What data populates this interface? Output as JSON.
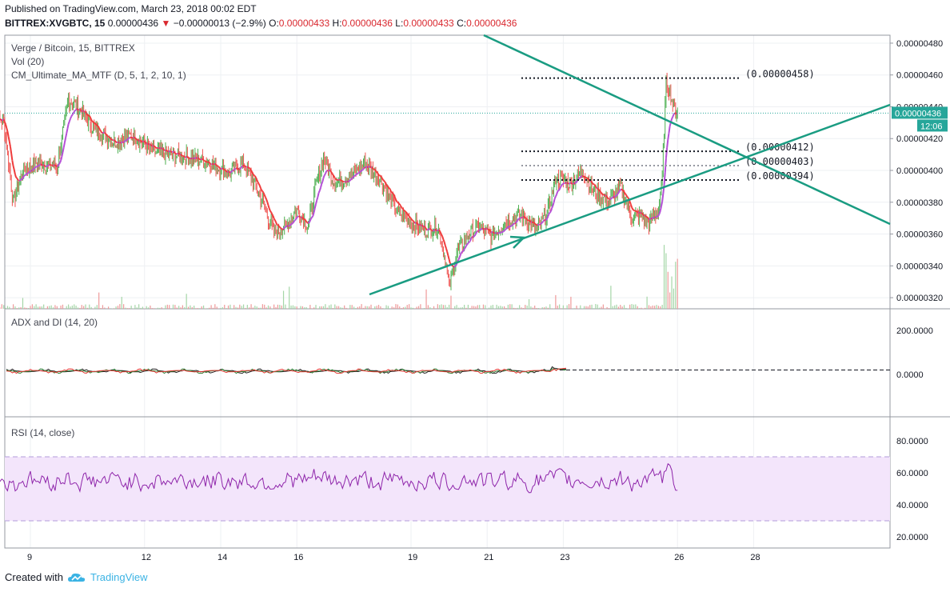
{
  "header": {
    "published": "Published on TradingView.com, March 23, 2018 00:02 EDT",
    "symbol": "BITTREX:XVGBTC, 15",
    "last": "0.00000436",
    "change": "−0.00000013 (−2.9%)",
    "o_label": "O:",
    "o_value": "0.00000433",
    "h_label": "H:",
    "h_value": "0.00000436",
    "l_label": "L:",
    "l_value": "0.00000433",
    "c_label": "C:",
    "c_value": "0.00000436"
  },
  "footer": {
    "created_with": "Created with",
    "brand": "TradingView"
  },
  "colors": {
    "up": "#4caf50",
    "down": "#ef5350",
    "ma_up": "#ef3b3b",
    "ma_flat": "#b44fd6",
    "trendline": "#1a9c82",
    "adx": "#222222",
    "di_plus": "#2e7d32",
    "di_minus": "#e53935",
    "rsi": "#8e24aa",
    "rsi_band": "#f3e5fb",
    "price_tag": "#26a69a"
  },
  "chart_data": [
    {
      "type": "candlestick",
      "legend": [
        "Verge / Bitcoin, 15, BITTREX",
        "Vol (20)",
        "CM_Ultimate_MA_MTF (D, 5, 1, 2, 10, 1)"
      ],
      "x_ticks": [
        "9",
        "12",
        "14",
        "16",
        "19",
        "21",
        "23",
        "26",
        "28"
      ],
      "y_ticks": [
        "0.00000320",
        "0.00000340",
        "0.00000360",
        "0.00000380",
        "0.00000400",
        "0.00000420",
        "0.00000440",
        "0.00000460",
        "0.00000480"
      ],
      "ylim": [
        3.13e-06,
        4.85e-06
      ],
      "current_price": "0.00000436",
      "countdown": "12:06",
      "levels": [
        {
          "label": "(0.00000458)",
          "value": 4.58e-06
        },
        {
          "label": "(0.00000412)",
          "value": 4.12e-06
        },
        {
          "label": "(0.00000403)",
          "value": 4.03e-06
        },
        {
          "label": "(0.00000394)",
          "value": 3.94e-06
        }
      ],
      "close_path": [
        [
          0.0,
          4.33e-06
        ],
        [
          0.3,
          4.31e-06
        ],
        [
          0.55,
          3.8e-06
        ],
        [
          0.8,
          4e-06
        ],
        [
          1.2,
          4.05e-06
        ],
        [
          1.7,
          4.02e-06
        ],
        [
          2.0,
          4.45e-06
        ],
        [
          2.3,
          4.38e-06
        ],
        [
          2.7,
          4.25e-06
        ],
        [
          3.2,
          4.18e-06
        ],
        [
          3.7,
          4.22e-06
        ],
        [
          4.2,
          4.12e-06
        ],
        [
          4.7,
          4.1e-06
        ],
        [
          5.2,
          4.08e-06
        ],
        [
          5.7,
          4.05e-06
        ],
        [
          6.2,
          3.98e-06
        ],
        [
          6.6,
          4.05e-06
        ],
        [
          7.1,
          3.8e-06
        ],
        [
          7.4,
          3.6e-06
        ],
        [
          7.7,
          3.65e-06
        ],
        [
          8.0,
          3.75e-06
        ],
        [
          8.3,
          3.65e-06
        ],
        [
          8.5,
          3.9e-06
        ],
        [
          8.7,
          4.08e-06
        ],
        [
          9.0,
          3.92e-06
        ],
        [
          9.5,
          3.98e-06
        ],
        [
          9.8,
          4.05e-06
        ],
        [
          10.2,
          3.94e-06
        ],
        [
          10.6,
          3.75e-06
        ],
        [
          11.0,
          3.67e-06
        ],
        [
          11.4,
          3.62e-06
        ],
        [
          11.7,
          3.65e-06
        ],
        [
          11.9,
          3.44e-06
        ],
        [
          12.0,
          3.27e-06
        ],
        [
          12.2,
          3.48e-06
        ],
        [
          12.5,
          3.6e-06
        ],
        [
          12.8,
          3.65e-06
        ],
        [
          13.1,
          3.58e-06
        ],
        [
          13.5,
          3.68e-06
        ],
        [
          13.9,
          3.72e-06
        ],
        [
          14.3,
          3.62e-06
        ],
        [
          14.6,
          3.75e-06
        ],
        [
          14.8,
          3.95e-06
        ],
        [
          15.2,
          3.92e-06
        ],
        [
          15.5,
          4e-06
        ],
        [
          15.8,
          3.87e-06
        ],
        [
          16.2,
          3.8e-06
        ],
        [
          16.5,
          3.9e-06
        ],
        [
          16.8,
          3.7e-06
        ],
        [
          17.0,
          3.72e-06
        ],
        [
          17.25,
          3.67e-06
        ],
        [
          17.5,
          3.75e-06
        ],
        [
          17.6,
          3.95e-06
        ],
        [
          17.7,
          4.55e-06
        ],
        [
          17.8,
          4.5e-06
        ],
        [
          17.9,
          4.4e-06
        ],
        [
          18.0,
          4.36e-06
        ]
      ],
      "x_domain": [
        "8 00:00",
        "23 00:00"
      ],
      "volume": {
        "spike": true
      }
    },
    {
      "type": "line",
      "legend": [
        "ADX and DI (14, 20)"
      ],
      "y_ticks": [
        "0.0000",
        "200.0000"
      ],
      "threshold": 20,
      "series": []
    },
    {
      "type": "line",
      "legend": [
        "RSI (14, close)"
      ],
      "y_ticks": [
        "20.0000",
        "40.0000",
        "60.0000",
        "80.0000"
      ],
      "ylim": [
        13,
        95
      ],
      "band": [
        30,
        70
      ],
      "series": []
    }
  ]
}
